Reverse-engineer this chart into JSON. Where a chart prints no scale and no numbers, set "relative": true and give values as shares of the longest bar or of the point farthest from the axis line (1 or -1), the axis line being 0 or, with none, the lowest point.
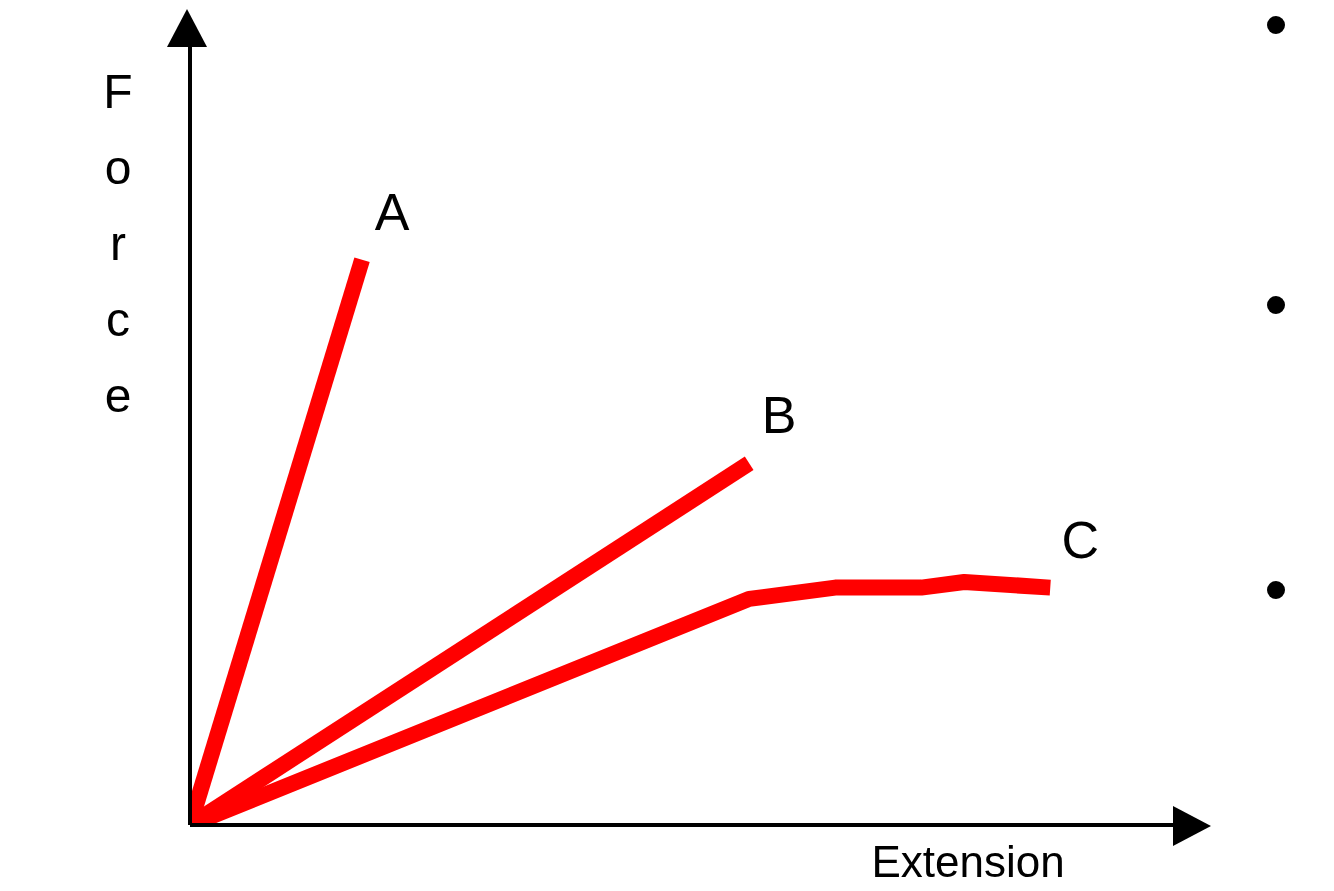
{
  "chart_data": {
    "type": "line",
    "relative": true,
    "xlabel": "Extension",
    "ylabel": "Force",
    "marker": "none",
    "line_style": "solid",
    "categories": [
      null,
      null,
      null,
      null,
      null,
      null,
      null,
      null,
      null,
      null,
      null,
      null,
      null,
      null,
      null,
      null,
      null,
      null,
      null,
      null,
      null
    ],
    "series": [
      {
        "name": "A",
        "color": "#ff0000",
        "values": [
          0,
          null,
          null,
          null,
          1,
          null,
          null,
          null,
          null,
          null,
          null,
          null,
          null,
          null,
          null,
          null,
          null,
          null,
          null,
          null,
          null
        ]
      },
      {
        "name": "B",
        "color": "#ff0000",
        "values": [
          0,
          null,
          null,
          null,
          null,
          null,
          null,
          null,
          null,
          null,
          null,
          null,
          null,
          0.64,
          null,
          null,
          null,
          null,
          null,
          null,
          null
        ]
      },
      {
        "name": "C",
        "color": "#ff0000",
        "values": [
          0,
          null,
          null,
          null,
          null,
          null,
          null,
          null,
          null,
          null,
          null,
          null,
          null,
          0.4,
          null,
          0.42,
          null,
          0.42,
          0.43,
          null,
          0.42
        ]
      }
    ]
  }
}
